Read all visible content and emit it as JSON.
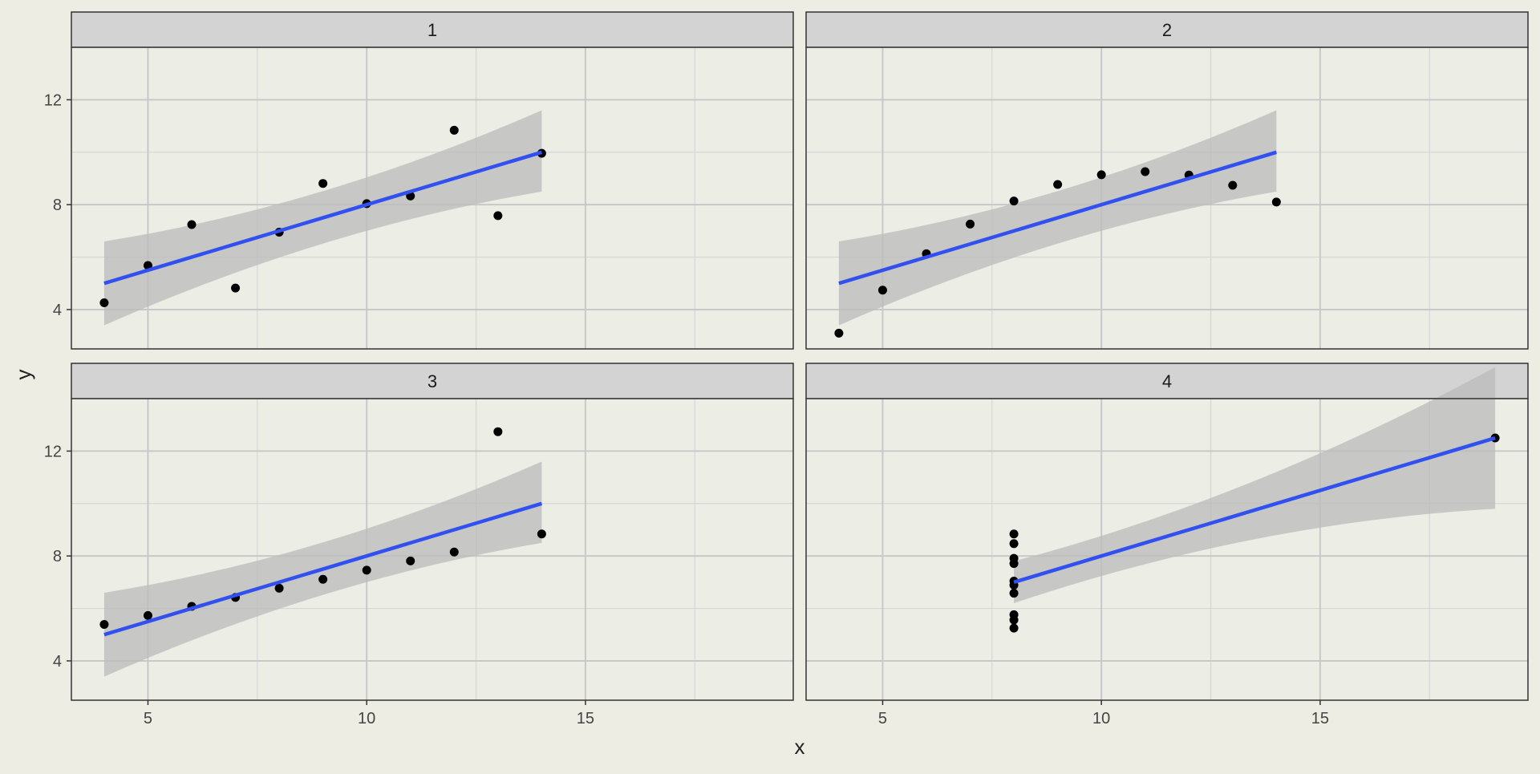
{
  "chart_data": {
    "type": "scatter",
    "facet_layout": "2x2",
    "xlabel": "x",
    "ylabel": "y",
    "xlim": [
      3.25,
      19.75
    ],
    "ylim": [
      2.5,
      14.0
    ],
    "x_ticks": [
      5,
      10,
      15
    ],
    "y_ticks": [
      4,
      8,
      12
    ],
    "grid": true,
    "shared_axes": true,
    "colors": {
      "plot_background": "#ecede5",
      "strip_background": "#d3d3d3",
      "grid_major": "#c8c8c8",
      "grid_minor": "#d6d6d6",
      "points": "#000000",
      "fit_line": "#3050f0",
      "confidence_band": "#bdbdbd"
    },
    "panels": [
      {
        "label": "1",
        "points": [
          [
            10,
            8.04
          ],
          [
            8,
            6.95
          ],
          [
            13,
            7.58
          ],
          [
            9,
            8.81
          ],
          [
            11,
            8.33
          ],
          [
            14,
            9.96
          ],
          [
            6,
            7.24
          ],
          [
            4,
            4.26
          ],
          [
            12,
            10.84
          ],
          [
            7,
            4.82
          ],
          [
            5,
            5.68
          ]
        ],
        "fit": {
          "x": [
            4,
            14
          ],
          "y": [
            5.0,
            10.0
          ]
        },
        "band": {
          "x": [
            4,
            14
          ],
          "lower": [
            3.4,
            8.5
          ],
          "upper": [
            6.6,
            11.6
          ]
        }
      },
      {
        "label": "2",
        "points": [
          [
            10,
            9.14
          ],
          [
            8,
            8.14
          ],
          [
            13,
            8.74
          ],
          [
            9,
            8.77
          ],
          [
            11,
            9.26
          ],
          [
            14,
            8.1
          ],
          [
            6,
            6.13
          ],
          [
            4,
            3.1
          ],
          [
            12,
            9.13
          ],
          [
            7,
            7.26
          ],
          [
            5,
            4.74
          ]
        ],
        "fit": {
          "x": [
            4,
            14
          ],
          "y": [
            5.0,
            10.0
          ]
        },
        "band": {
          "x": [
            4,
            14
          ],
          "lower": [
            3.4,
            8.5
          ],
          "upper": [
            6.6,
            11.6
          ]
        }
      },
      {
        "label": "3",
        "points": [
          [
            10,
            7.46
          ],
          [
            8,
            6.77
          ],
          [
            13,
            12.74
          ],
          [
            9,
            7.11
          ],
          [
            11,
            7.81
          ],
          [
            14,
            8.84
          ],
          [
            6,
            6.08
          ],
          [
            4,
            5.39
          ],
          [
            12,
            8.15
          ],
          [
            7,
            6.42
          ],
          [
            5,
            5.73
          ]
        ],
        "fit": {
          "x": [
            4,
            14
          ],
          "y": [
            5.0,
            10.0
          ]
        },
        "band": {
          "x": [
            4,
            14
          ],
          "lower": [
            3.4,
            8.5
          ],
          "upper": [
            6.6,
            11.6
          ]
        }
      },
      {
        "label": "4",
        "points": [
          [
            8,
            6.58
          ],
          [
            8,
            5.76
          ],
          [
            8,
            7.71
          ],
          [
            8,
            8.84
          ],
          [
            8,
            8.47
          ],
          [
            8,
            7.04
          ],
          [
            8,
            5.25
          ],
          [
            19,
            12.5
          ],
          [
            8,
            5.56
          ],
          [
            8,
            7.91
          ],
          [
            8,
            6.89
          ]
        ],
        "fit": {
          "x": [
            8,
            19
          ],
          "y": [
            7.0,
            12.5
          ]
        },
        "band": {
          "x": [
            8,
            19
          ],
          "lower": [
            6.2,
            9.8
          ],
          "upper": [
            7.8,
            15.2
          ]
        }
      }
    ]
  }
}
